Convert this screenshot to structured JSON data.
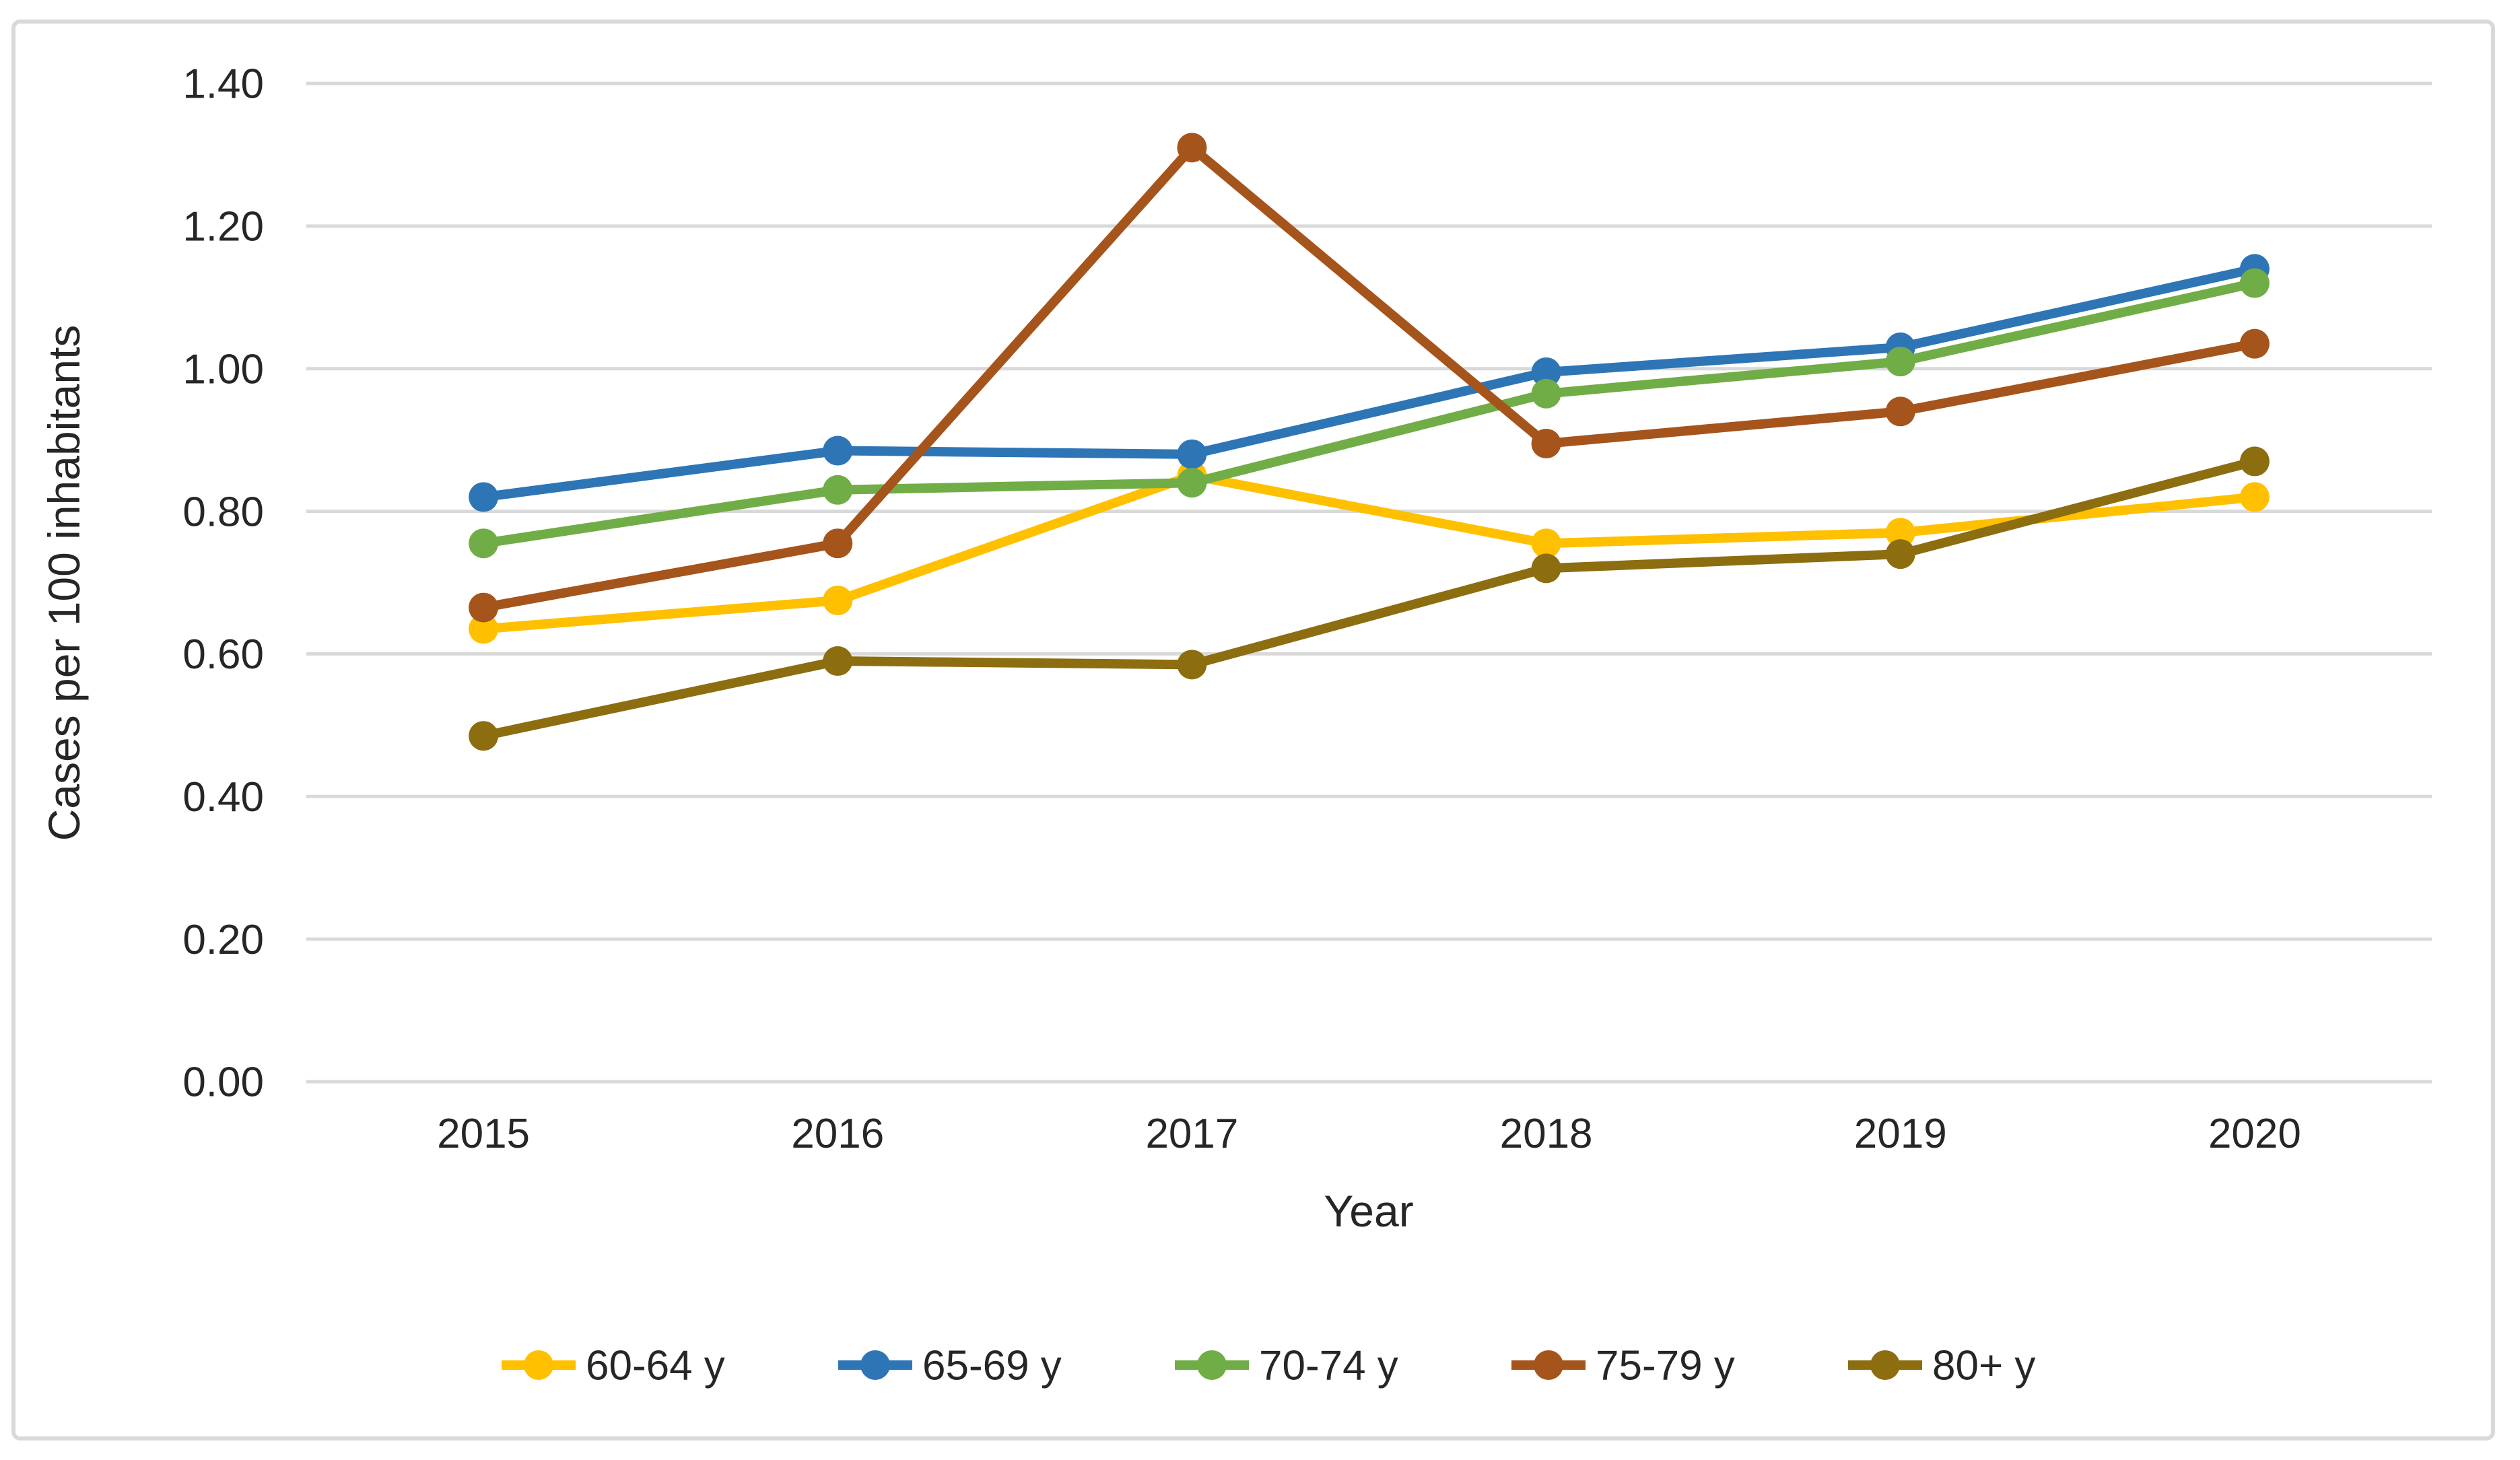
{
  "chart_data": {
    "type": "line",
    "xlabel": "Year",
    "ylabel": "Cases per 100 inhabitants",
    "categories": [
      "2015",
      "2016",
      "2017",
      "2018",
      "2019",
      "2020"
    ],
    "series": [
      {
        "name": "60-64 y",
        "color": "#FFC000",
        "values": [
          0.635,
          0.675,
          0.85,
          0.755,
          0.77,
          0.82
        ]
      },
      {
        "name": "65-69 y",
        "color": "#2E75B6",
        "values": [
          0.82,
          0.885,
          0.88,
          0.995,
          1.03,
          1.14
        ]
      },
      {
        "name": "70-74 y",
        "color": "#70AD47",
        "values": [
          0.755,
          0.83,
          0.84,
          0.965,
          1.01,
          1.12
        ]
      },
      {
        "name": "75-79 y",
        "color": "#A5541C",
        "values": [
          0.665,
          0.755,
          1.31,
          0.895,
          0.94,
          1.035
        ]
      },
      {
        "name": "80+ y",
        "color": "#8C6D10",
        "values": [
          0.485,
          0.59,
          0.585,
          0.72,
          0.74,
          0.87
        ]
      }
    ],
    "yticks": [
      {
        "value": 0.0,
        "label": "0.00"
      },
      {
        "value": 0.2,
        "label": "0.20"
      },
      {
        "value": 0.4,
        "label": "0.40"
      },
      {
        "value": 0.6,
        "label": "0.60"
      },
      {
        "value": 0.8,
        "label": "0.80"
      },
      {
        "value": 1.0,
        "label": "1.00"
      },
      {
        "value": 1.2,
        "label": "1.20"
      },
      {
        "value": 1.4,
        "label": "1.40"
      }
    ],
    "ylim": [
      0,
      1.4
    ],
    "grid": true,
    "legend_position": "bottom",
    "marker": "circle",
    "colors": {
      "gridline": "#D9D9D9",
      "frame_border": "#D9D9D9",
      "label_text": "#262626"
    }
  }
}
